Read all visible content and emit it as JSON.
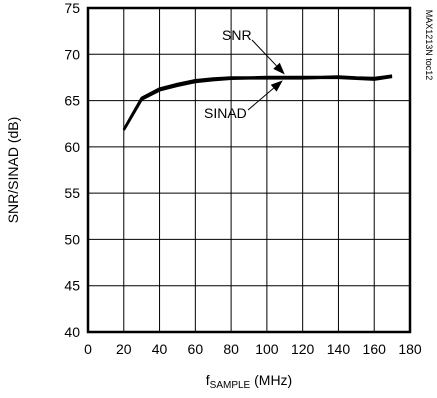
{
  "chart_data": {
    "type": "line",
    "xlabel_main": "f",
    "xlabel_sub": "SAMPLE",
    "xlabel_unit": " (MHz)",
    "ylabel": "SNR/SINAD (dB)",
    "xlim": [
      0,
      180
    ],
    "ylim": [
      40,
      75
    ],
    "xticks": [
      "0",
      "20",
      "40",
      "60",
      "80",
      "100",
      "120",
      "140",
      "160",
      "180"
    ],
    "yticks": [
      "40",
      "45",
      "50",
      "55",
      "60",
      "65",
      "70",
      "75"
    ],
    "grid": true,
    "series": [
      {
        "name": "SNR",
        "x": [
          20,
          30,
          40,
          50,
          60,
          70,
          80,
          90,
          100,
          110,
          120,
          130,
          140,
          150,
          160,
          170
        ],
        "y": [
          61.9,
          65.3,
          66.3,
          66.8,
          67.2,
          67.4,
          67.5,
          67.5,
          67.55,
          67.55,
          67.55,
          67.55,
          67.6,
          67.5,
          67.45,
          67.7
        ]
      },
      {
        "name": "SINAD",
        "x": [
          20,
          30,
          40,
          50,
          60,
          70,
          80,
          90,
          100,
          110,
          120,
          130,
          140,
          150,
          160,
          170
        ],
        "y": [
          61.8,
          65.1,
          66.1,
          66.6,
          67.0,
          67.2,
          67.35,
          67.4,
          67.4,
          67.4,
          67.4,
          67.45,
          67.45,
          67.35,
          67.25,
          67.55
        ]
      }
    ],
    "annotations": [
      {
        "text": "SNR",
        "target_x": 110,
        "target_y": 67.6
      },
      {
        "text": "SINAD",
        "target_x": 110,
        "target_y": 67.4
      }
    ],
    "figure_id": "MAX1213N toc12"
  }
}
